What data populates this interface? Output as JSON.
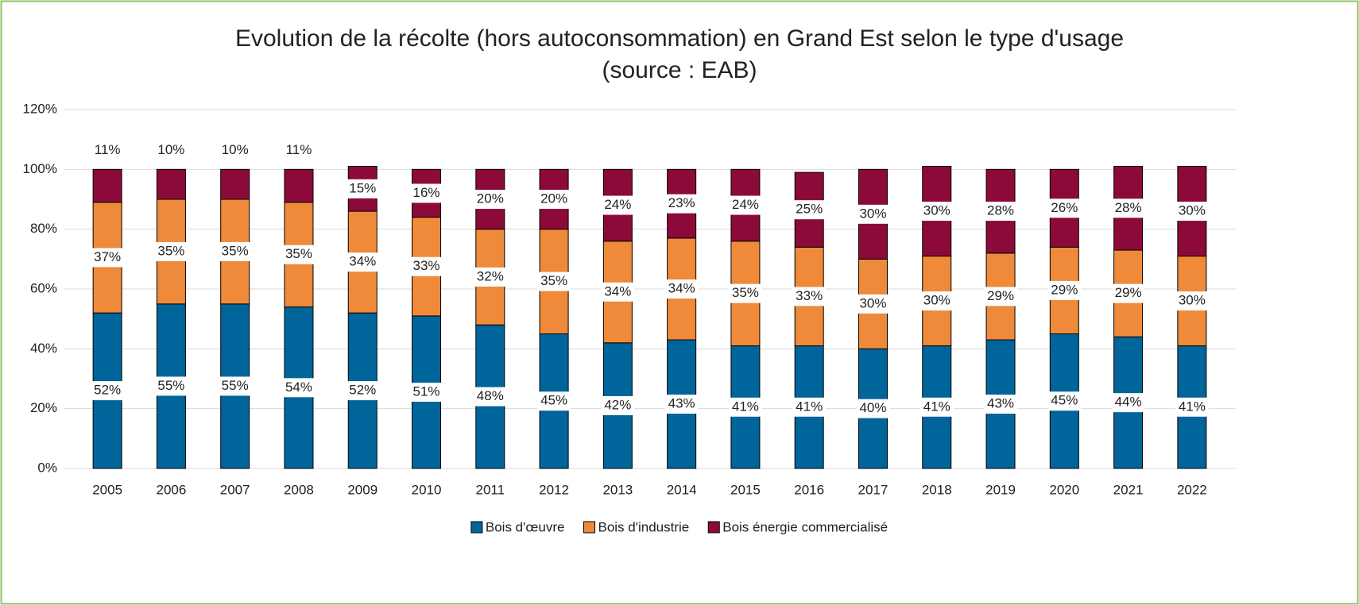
{
  "chart_data": {
    "type": "stacked_bar",
    "title": "Evolution de la récolte (hors autoconsommation) en Grand Est selon le type d'usage",
    "subtitle": "(source : EAB)",
    "categories": [
      "2005",
      "2006",
      "2007",
      "2008",
      "2009",
      "2010",
      "2011",
      "2012",
      "2013",
      "2014",
      "2015",
      "2016",
      "2017",
      "2018",
      "2019",
      "2020",
      "2021",
      "2022"
    ],
    "series": [
      {
        "name": "Bois d'œuvre",
        "color": "#00659b",
        "values": [
          52,
          55,
          55,
          54,
          52,
          51,
          48,
          45,
          42,
          43,
          41,
          41,
          40,
          41,
          43,
          45,
          44,
          41
        ],
        "value_labels": [
          "52%",
          "55%",
          "55%",
          "54%",
          "52%",
          "51%",
          "48%",
          "45%",
          "42%",
          "43%",
          "41%",
          "41%",
          "40%",
          "41%",
          "43%",
          "45%",
          "44%",
          "41%"
        ]
      },
      {
        "name": "Bois d'industrie",
        "color": "#ee8a3a",
        "values": [
          37,
          35,
          35,
          35,
          34,
          33,
          32,
          35,
          34,
          34,
          35,
          33,
          30,
          30,
          29,
          29,
          29,
          30
        ],
        "value_labels": [
          "37%",
          "35%",
          "35%",
          "35%",
          "34%",
          "33%",
          "32%",
          "35%",
          "34%",
          "34%",
          "35%",
          "33%",
          "30%",
          "30%",
          "29%",
          "29%",
          "29%",
          "30%"
        ]
      },
      {
        "name": "Bois énergie commercialisé",
        "color": "#8b0a3a",
        "values": [
          11,
          10,
          10,
          11,
          15,
          16,
          20,
          20,
          24,
          23,
          24,
          25,
          30,
          30,
          28,
          26,
          28,
          30
        ],
        "value_labels": [
          "11%",
          "10%",
          "10%",
          "11%",
          "15%",
          "16%",
          "20%",
          "20%",
          "24%",
          "23%",
          "24%",
          "25%",
          "30%",
          "30%",
          "28%",
          "26%",
          "28%",
          "30%"
        ]
      }
    ],
    "ylim": [
      0,
      120
    ],
    "yticks": [
      {
        "value": 0,
        "label": "0%"
      },
      {
        "value": 20,
        "label": "20%"
      },
      {
        "value": 40,
        "label": "40%"
      },
      {
        "value": 60,
        "label": "60%"
      },
      {
        "value": 80,
        "label": "80%"
      },
      {
        "value": 100,
        "label": "100%"
      },
      {
        "value": 120,
        "label": "120%"
      }
    ],
    "grid": true,
    "legend": "bottom"
  }
}
